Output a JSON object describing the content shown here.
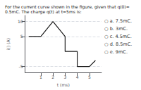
{
  "chart_data": {
    "type": "line",
    "title": "For the current curve shown in the figure, given that q(0)= 0.5mC. The charge q(t) at t=5ms is:",
    "xlabel": "t (ms)",
    "ylabel": "i() (A)",
    "x": [
      0,
      1,
      2,
      3,
      3,
      4,
      4,
      5,
      5.5
    ],
    "values": [
      5,
      5,
      10,
      5,
      0,
      0,
      -5,
      -5,
      -3
    ],
    "color": "#1a1a1a",
    "xlim": [
      -0.3,
      6.0
    ],
    "ylim": [
      -7,
      12
    ],
    "xticks": [
      1,
      2,
      3,
      4,
      5
    ],
    "yticks": [
      -5,
      5,
      10
    ],
    "grid": true,
    "annotations": [
      "○ a. 7.5mC.",
      "○ b. 3mC.",
      "○ c. 4.5mC.",
      "○ d. 8.5mC.",
      "○ e. 9mC."
    ]
  }
}
